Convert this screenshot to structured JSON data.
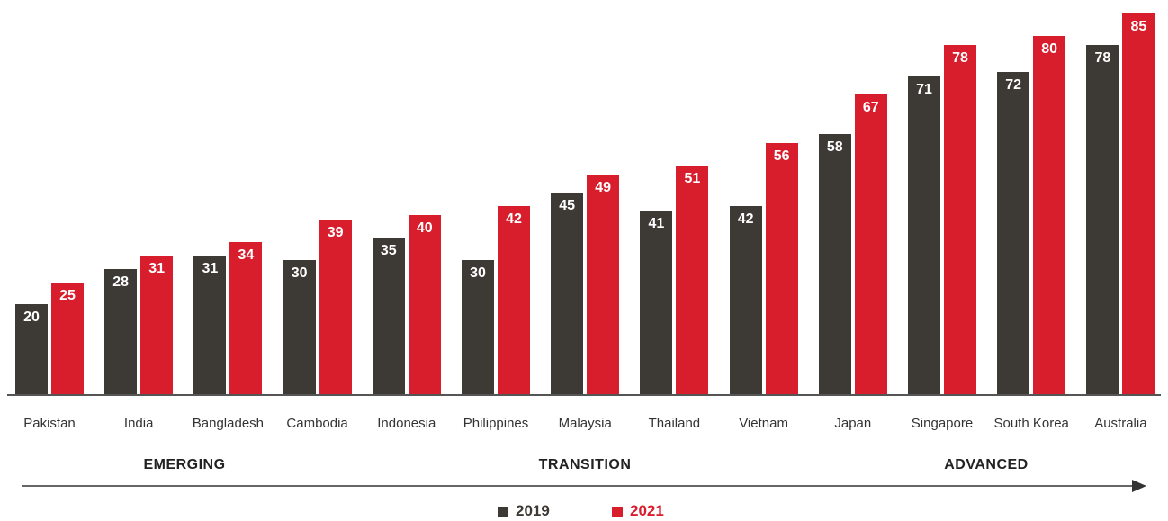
{
  "chart_data": {
    "type": "bar",
    "categories": [
      "Pakistan",
      "India",
      "Bangladesh",
      "Cambodia",
      "Indonesia",
      "Philippines",
      "Malaysia",
      "Thailand",
      "Vietnam",
      "Japan",
      "Singapore",
      "South Korea",
      "Australia"
    ],
    "series": [
      {
        "name": "2019",
        "color": "#3d3935",
        "values": [
          20,
          28,
          31,
          30,
          35,
          30,
          45,
          41,
          42,
          58,
          71,
          72,
          78
        ]
      },
      {
        "name": "2021",
        "color": "#d81e2c",
        "values": [
          25,
          31,
          34,
          39,
          40,
          42,
          49,
          51,
          56,
          67,
          78,
          80,
          85
        ]
      }
    ],
    "ylim": [
      0,
      85
    ],
    "stages": [
      "EMERGING",
      "TRANSITION",
      "ADVANCED"
    ]
  }
}
